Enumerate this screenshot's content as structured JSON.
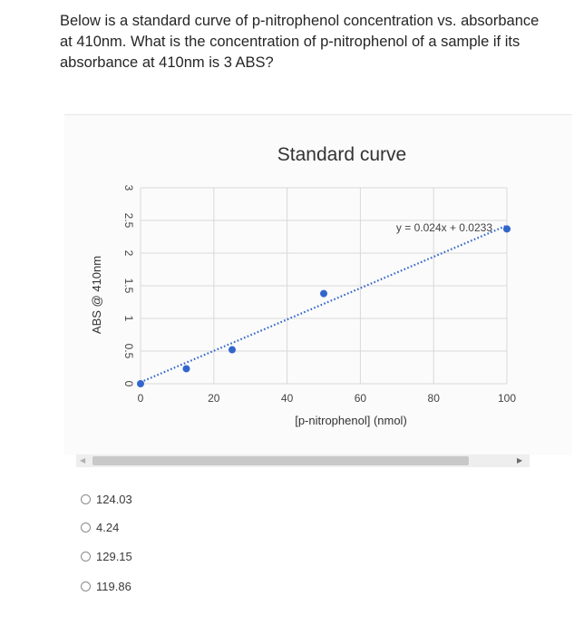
{
  "question": {
    "text": "Below is a standard curve of p-nitrophenol concentration vs. absorbance at 410nm. What is the concentration of p-nitrophenol of a sample if its absorbance at 410nm is 3 ABS?"
  },
  "options": [
    {
      "label": "124.03"
    },
    {
      "label": "4.24"
    },
    {
      "label": "129.15"
    },
    {
      "label": "119.86"
    }
  ],
  "colors": {
    "point": "#3366cc",
    "trendline": "#3366cc",
    "grid": "#d9d9d9"
  },
  "chart_data": {
    "type": "scatter",
    "title": "Standard curve",
    "xlabel": "[p-nitrophenol] (nmol)",
    "ylabel": "ABS @ 410nm",
    "xlim": [
      0,
      100
    ],
    "ylim": [
      0,
      3
    ],
    "x_ticks": [
      "0",
      "20",
      "40",
      "60",
      "80",
      "100"
    ],
    "y_ticks": [
      "0",
      "0.5",
      "1",
      "1.5",
      "2",
      "2.5",
      "3"
    ],
    "grid": true,
    "points": [
      {
        "x": 0,
        "y": 0.0
      },
      {
        "x": 12.5,
        "y": 0.23
      },
      {
        "x": 25,
        "y": 0.52
      },
      {
        "x": 50,
        "y": 1.38
      },
      {
        "x": 100,
        "y": 2.37
      }
    ],
    "trendline": {
      "slope": 0.024,
      "intercept": 0.0233,
      "style": "dotted"
    },
    "annotation": "y = 0.024x + 0.0233"
  }
}
